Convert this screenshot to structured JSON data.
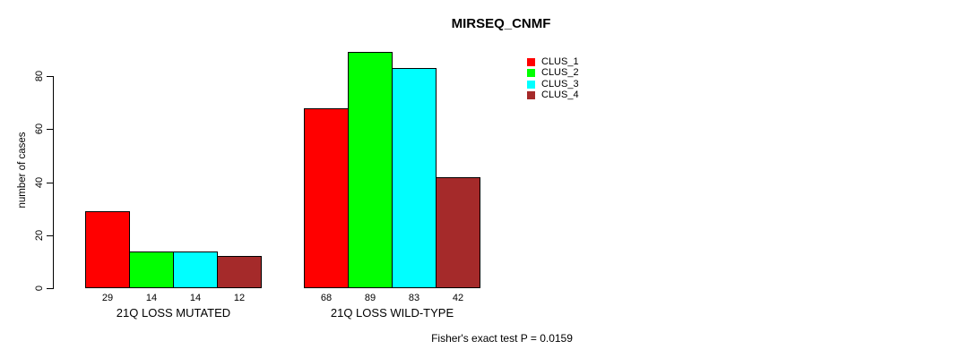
{
  "title": "MIRSEQ_CNMF",
  "footer": "Fisher's exact test P = 0.0159",
  "chart_data": {
    "type": "bar",
    "title": "MIRSEQ_CNMF",
    "categories": [
      "21Q LOSS MUTATED",
      "21Q LOSS WILD-TYPE"
    ],
    "series": [
      {
        "name": "CLUS_1",
        "color": "#FF0000",
        "values": [
          29,
          68
        ]
      },
      {
        "name": "CLUS_2",
        "color": "#00FF00",
        "values": [
          14,
          89
        ]
      },
      {
        "name": "CLUS_3",
        "color": "#00FFFF",
        "values": [
          14,
          83
        ]
      },
      {
        "name": "CLUS_4",
        "color": "#A52A2A",
        "values": [
          12,
          42
        ]
      }
    ],
    "xlabel": "",
    "ylabel": "number of cases",
    "ylim": [
      0,
      89
    ],
    "yticks": [
      0,
      20,
      40,
      60,
      80
    ],
    "bar_value_labels": true,
    "grid": false,
    "legend_position": "top-right",
    "annotation": "Fisher's exact test P = 0.0159"
  }
}
